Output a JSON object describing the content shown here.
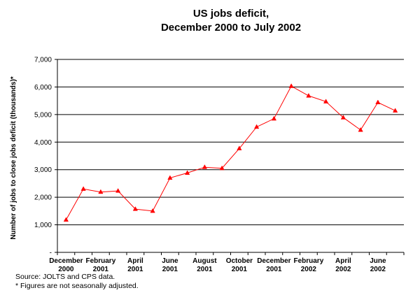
{
  "chart_data": {
    "type": "line",
    "title": [
      "US jobs deficit,",
      "December 2000 to July 2002"
    ],
    "ylabel": "Number of jobs to close jobs deficit (thousands)*",
    "xlabel": "",
    "ylim": [
      0,
      7000
    ],
    "yticks": [
      {
        "value": 0,
        "label": "-"
      },
      {
        "value": 1000,
        "label": "1,000"
      },
      {
        "value": 2000,
        "label": "2,000"
      },
      {
        "value": 3000,
        "label": "3,000"
      },
      {
        "value": 4000,
        "label": "4,000"
      },
      {
        "value": 5000,
        "label": "5,000"
      },
      {
        "value": 6000,
        "label": "6,000"
      },
      {
        "value": 7000,
        "label": "7,000"
      }
    ],
    "grid": "horizontal",
    "legend": "none",
    "x": [
      "Dec 2000",
      "Jan 2001",
      "Feb 2001",
      "Mar 2001",
      "Apr 2001",
      "May 2001",
      "Jun 2001",
      "Jul 2001",
      "Aug 2001",
      "Sep 2001",
      "Oct 2001",
      "Nov 2001",
      "Dec 2001",
      "Jan 2002",
      "Feb 2002",
      "Mar 2002",
      "Apr 2002",
      "May 2002",
      "Jun 2002",
      "Jul 2002"
    ],
    "xticklabels": [
      {
        "index": 0,
        "line1": "December",
        "line2": "2000"
      },
      {
        "index": 2,
        "line1": "February",
        "line2": "2001"
      },
      {
        "index": 4,
        "line1": "April",
        "line2": "2001"
      },
      {
        "index": 6,
        "line1": "June",
        "line2": "2001"
      },
      {
        "index": 8,
        "line1": "August",
        "line2": "2001"
      },
      {
        "index": 10,
        "line1": "October",
        "line2": "2001"
      },
      {
        "index": 12,
        "line1": "December",
        "line2": "2001"
      },
      {
        "index": 14,
        "line1": "February",
        "line2": "2002"
      },
      {
        "index": 16,
        "line1": "April",
        "line2": "2002"
      },
      {
        "index": 18,
        "line1": "June",
        "line2": "2002"
      }
    ],
    "series": [
      {
        "color": "#ff0000",
        "marker": "triangle",
        "values": [
          1180,
          2300,
          2190,
          2230,
          1570,
          1500,
          2700,
          2880,
          3090,
          3050,
          3770,
          4550,
          4850,
          6030,
          5680,
          5470,
          4890,
          4440,
          5440,
          5140
        ]
      }
    ]
  },
  "footnotes": {
    "source": "Source: JOLTS and CPS data.",
    "note": "* Figures are not seasonally adjusted."
  }
}
